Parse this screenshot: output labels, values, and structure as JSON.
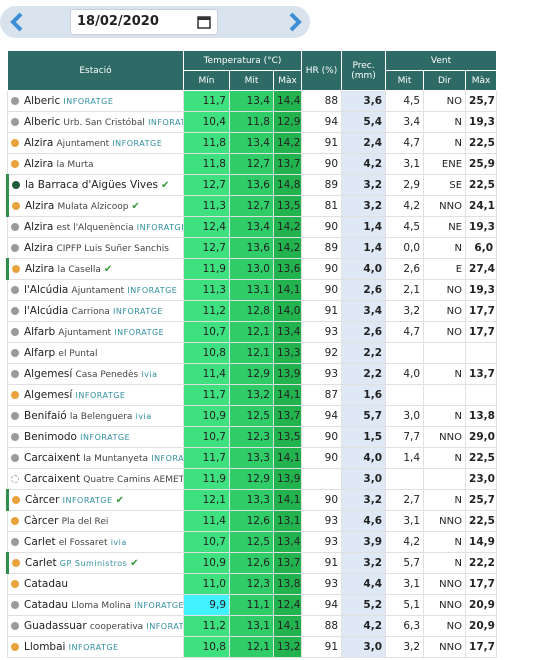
{
  "date_picker": {
    "date": "18/02/2020"
  },
  "table": {
    "headers": {
      "station": "Estació",
      "temperature": "Temperatura (°C)",
      "humidity": "HR (%)",
      "precipitation": "Prec. (mm)",
      "wind": "Vent",
      "temp_min": "Mín",
      "temp_mit": "Mit",
      "temp_max": "Màx",
      "wind_mit": "Mit",
      "wind_dir": "Dir",
      "wind_max": "Màx"
    },
    "rows": [
      {
        "town": "Alberic",
        "tag": "INFORATGE",
        "dot": "#9a9a9a",
        "cells": [
          "11,7",
          "13,4",
          "14,4",
          "88",
          "3,6",
          "4,5",
          "NO",
          "25,7"
        ]
      },
      {
        "town": "Alberic",
        "site": "Urb. San Cristóbal",
        "tag": "INFORATGE",
        "dot": "#9a9a9a",
        "cells": [
          "10,4",
          "11,8",
          "12,9",
          "94",
          "5,4",
          "3,4",
          "N",
          "19,3"
        ]
      },
      {
        "town": "Alzira",
        "site": "Ajuntament",
        "tag": "INFORATGE",
        "dot": "#e8a33d",
        "cells": [
          "11,8",
          "13,4",
          "14,2",
          "91",
          "2,4",
          "4,7",
          "N",
          "22,5"
        ]
      },
      {
        "town": "Alzira",
        "site": "la Murta",
        "dot": "#e8a33d",
        "cells": [
          "11,8",
          "12,7",
          "13,7",
          "90",
          "4,2",
          "3,1",
          "ENE",
          "25,9"
        ]
      },
      {
        "town": "la Barraca d'Aigües Vives",
        "verified": true,
        "dot": "#1d5e3c",
        "cells": [
          "12,7",
          "13,6",
          "14,8",
          "89",
          "3,2",
          "2,9",
          "SE",
          "22,5"
        ]
      },
      {
        "town": "Alzira",
        "site": "Mulata Alzicoop",
        "verified": true,
        "dot": "#e8a33d",
        "cells": [
          "11,3",
          "12,7",
          "13,5",
          "81",
          "3,2",
          "4,2",
          "NNO",
          "24,1"
        ]
      },
      {
        "town": "Alzira",
        "site": "est l'Alquenència",
        "tag": "INFORATGE",
        "dot": "#9a9a9a",
        "cells": [
          "12,4",
          "13,4",
          "14,2",
          "90",
          "1,4",
          "4,5",
          "NE",
          "19,3"
        ]
      },
      {
        "town": "Alzira",
        "site": "CIPFP Luis Suñer Sanchis",
        "dot": "#9a9a9a",
        "cells": [
          "12,7",
          "13,6",
          "14,2",
          "89",
          "1,4",
          "0,0",
          "N",
          "6,0"
        ]
      },
      {
        "town": "Alzira",
        "site": "la Casella",
        "verified": true,
        "dot": "#e8a33d",
        "cells": [
          "11,9",
          "13,0",
          "13,6",
          "90",
          "4,0",
          "2,6",
          "E",
          "27,4"
        ]
      },
      {
        "town": "l'Alcúdia",
        "site": "Ajuntament",
        "tag": "INFORATGE",
        "dot": "#9a9a9a",
        "cells": [
          "11,3",
          "13,1",
          "14,1",
          "90",
          "2,6",
          "2,1",
          "NO",
          "19,3"
        ]
      },
      {
        "town": "l'Alcúdia",
        "site": "Carriona",
        "tag": "INFORATGE",
        "dot": "#9a9a9a",
        "cells": [
          "11,2",
          "12,8",
          "14,0",
          "91",
          "3,4",
          "3,2",
          "NO",
          "17,7"
        ]
      },
      {
        "town": "Alfarb",
        "site": "Ajuntament",
        "tag": "INFORATGE",
        "dot": "#9a9a9a",
        "cells": [
          "10,7",
          "12,1",
          "13,4",
          "93",
          "2,6",
          "4,7",
          "NO",
          "17,7"
        ]
      },
      {
        "town": "Alfarp",
        "site": "el Puntal",
        "dot": "#9a9a9a",
        "cells": [
          "10,8",
          "12,1",
          "13,3",
          "92",
          "2,2",
          null,
          null,
          null
        ]
      },
      {
        "town": "Algemesí",
        "site": "Casa Penedès",
        "tag": "ivia",
        "dot": "#9a9a9a",
        "cells": [
          "11,4",
          "12,9",
          "13,9",
          "93",
          "2,2",
          "4,0",
          "N",
          "13,7"
        ]
      },
      {
        "town": "Algemesí",
        "tag": "INFORATGE",
        "dot": "#e8a33d",
        "cells": [
          "11,7",
          "13,2",
          "14,1",
          "87",
          "1,6",
          null,
          null,
          null
        ]
      },
      {
        "town": "Benifaió",
        "site": "la Belenguera",
        "tag": "ivia",
        "dot": "#9a9a9a",
        "cells": [
          "10,9",
          "12,5",
          "13,7",
          "94",
          "5,7",
          "3,0",
          "N",
          "13,8"
        ]
      },
      {
        "town": "Benimodo",
        "tag": "INFORATGE",
        "dot": "#9a9a9a",
        "cells": [
          "10,7",
          "12,3",
          "13,5",
          "90",
          "1,5",
          "7,7",
          "NNO",
          "29,0"
        ]
      },
      {
        "town": "Carcaixent",
        "site": "la Muntanyeta",
        "tag": "INFORATGE",
        "dot": "#9a9a9a",
        "cells": [
          "11,7",
          "13,3",
          "14,1",
          "90",
          "4,0",
          "1,4",
          "N",
          "22,5"
        ]
      },
      {
        "town": "Carcaixent",
        "site": "Quatre Camins AEMET",
        "dot": "#ffffff",
        "cells": [
          "11,9",
          "12,9",
          "13,9",
          null,
          "3,0",
          null,
          null,
          "23,0"
        ]
      },
      {
        "town": "Càrcer",
        "tag": "INFORATGE",
        "verified": true,
        "dot": "#e8a33d",
        "cells": [
          "12,1",
          "13,3",
          "14,1",
          "90",
          "3,2",
          "2,7",
          "N",
          "25,7"
        ]
      },
      {
        "town": "Càrcer",
        "site": "Pla del Rei",
        "dot": "#e8a33d",
        "cells": [
          "11,4",
          "12,6",
          "13,1",
          "93",
          "4,6",
          "3,1",
          "NNO",
          "22,5"
        ]
      },
      {
        "town": "Carlet",
        "site": "el Fossaret",
        "tag": "ivia",
        "dot": "#9a9a9a",
        "cells": [
          "10,7",
          "12,5",
          "13,4",
          "93",
          "3,9",
          "4,2",
          "N",
          "14,9"
        ]
      },
      {
        "town": "Carlet",
        "tag": "GP Suministros",
        "verified": true,
        "dot": "#e8a33d",
        "cells": [
          "10,9",
          "12,6",
          "13,7",
          "91",
          "3,2",
          "5,7",
          "N",
          "22,2"
        ]
      },
      {
        "town": "Catadau",
        "dot": "#e8a33d",
        "cells": [
          "11,0",
          "12,3",
          "13,8",
          "93",
          "4,4",
          "3,1",
          "NNO",
          "17,7"
        ]
      },
      {
        "town": "Catadau",
        "site": "Lloma Molina",
        "tag": "INFORATGE",
        "dot": "#9a9a9a",
        "cells": [
          "9,9",
          "11,1",
          "12,4",
          "94",
          "5,2",
          "5,1",
          "NNO",
          "20,9"
        ]
      },
      {
        "town": "Guadassuar",
        "site": "cooperativa",
        "tag": "INFORATGE",
        "dot": "#9a9a9a",
        "cells": [
          "11,2",
          "13,1",
          "14,1",
          "88",
          "4,2",
          "6,3",
          "NO",
          "20,9"
        ]
      },
      {
        "town": "Llombai",
        "tag": "INFORATGE",
        "dot": "#e8a33d",
        "cells": [
          "10,8",
          "12,1",
          "13,2",
          "91",
          "3,0",
          "3,2",
          "NNO",
          "17,7"
        ]
      }
    ]
  }
}
